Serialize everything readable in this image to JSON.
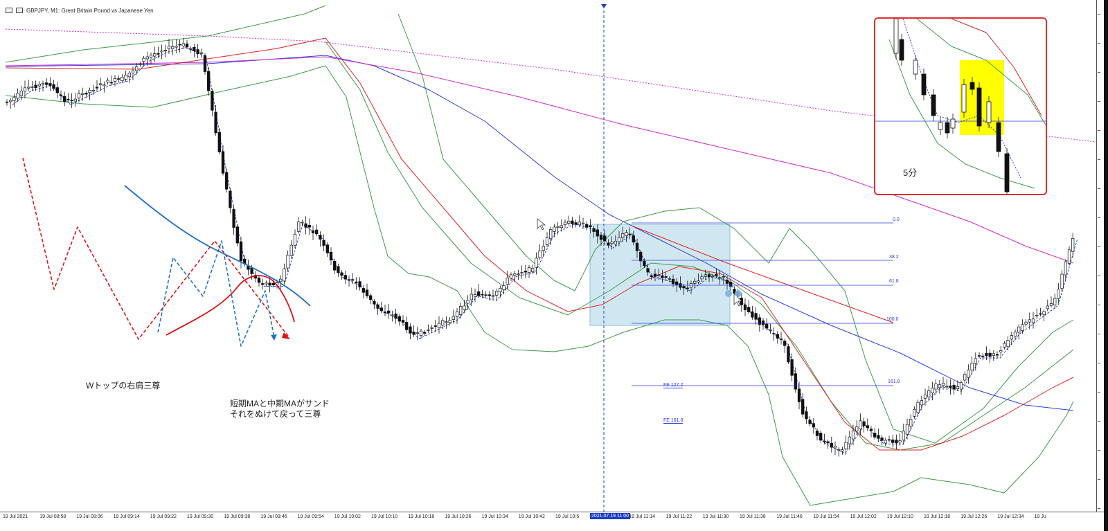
{
  "window": {
    "title": "GBPJPY, M1:  Great Britain Pound vs Japanese Yen"
  },
  "annotations": {
    "wtop": "Wトップの右肩三尊",
    "ma_line1": "短期MAと中期MAがサンド",
    "ma_line2": "それをぬけて戻って三尊"
  },
  "inset": {
    "label": "5分",
    "border_color": "#e03030",
    "highlight_color": "#ffff00"
  },
  "time_axis": {
    "labels": [
      "19 Jul 2021",
      "19 Jul 08:58",
      "19 Jul 09:06",
      "19 Jul 09:14",
      "19 Jul 09:22",
      "19 Jul 09:30",
      "19 Jul 09:38",
      "19 Jul 09:46",
      "19 Jul 09:54",
      "19 Jul 10:02",
      "19 Jul 10:10",
      "19 Jul 10:18",
      "19 Jul 10:26",
      "19 Jul 10:34",
      "19 Jul 10:42",
      "19 Jul 10:5",
      "19 Jul 11:06",
      "19 Jul 11:14",
      "19 Jul 11:22",
      "19 Jul 11:30",
      "19 Jul 11:38",
      "19 Jul 11:46",
      "19 Jul 11:54",
      "19 Jul 12:02",
      "19 Jul 12:10",
      "19 Jul 12:18",
      "19 Jul 12:26",
      "19 Jul 12:34",
      "19 Ju"
    ],
    "highlighted": "2021.07.19 11:00"
  },
  "fibonacci": {
    "levels": [
      "0.0",
      "38.2",
      "61.8",
      "100.0",
      "161.8"
    ],
    "expansions": [
      "FE 127.2",
      "FE 161.8"
    ]
  },
  "colors": {
    "bollinger": "#3c9a4c",
    "ma_short": "#e02020",
    "ma_mid": "#2a3de0",
    "ma_long": "#d22ad2",
    "fib": "#2a3de0",
    "zone": "#a9d3e6"
  },
  "chart_data": {
    "type": "candlestick",
    "symbol": "GBPJPY",
    "timeframe": "M1",
    "x_start": "19 Jul 2021 08:50",
    "x_end": "19 Jul 12:36",
    "series": [
      {
        "name": "Bollinger Bands",
        "style": "green"
      },
      {
        "name": "Short MA",
        "style": "blue dashed"
      },
      {
        "name": "Mid MA",
        "style": "red"
      },
      {
        "name": "Long MA",
        "style": "blue"
      },
      {
        "name": "Longer MA",
        "style": "magenta"
      }
    ],
    "close_path": [
      0.83,
      0.86,
      0.87,
      0.83,
      0.85,
      0.87,
      0.88,
      0.92,
      0.94,
      0.95,
      0.93,
      0.7,
      0.5,
      0.45,
      0.45,
      0.58,
      0.55,
      0.47,
      0.45,
      0.4,
      0.38,
      0.34,
      0.36,
      0.38,
      0.43,
      0.42,
      0.47,
      0.48,
      0.56,
      0.58,
      0.57,
      0.53,
      0.56,
      0.47,
      0.46,
      0.44,
      0.47,
      0.46,
      0.4,
      0.36,
      0.33,
      0.18,
      0.12,
      0.1,
      0.16,
      0.12,
      0.12,
      0.2,
      0.24,
      0.23,
      0.3,
      0.3,
      0.35,
      0.38,
      0.41,
      0.55
    ]
  }
}
